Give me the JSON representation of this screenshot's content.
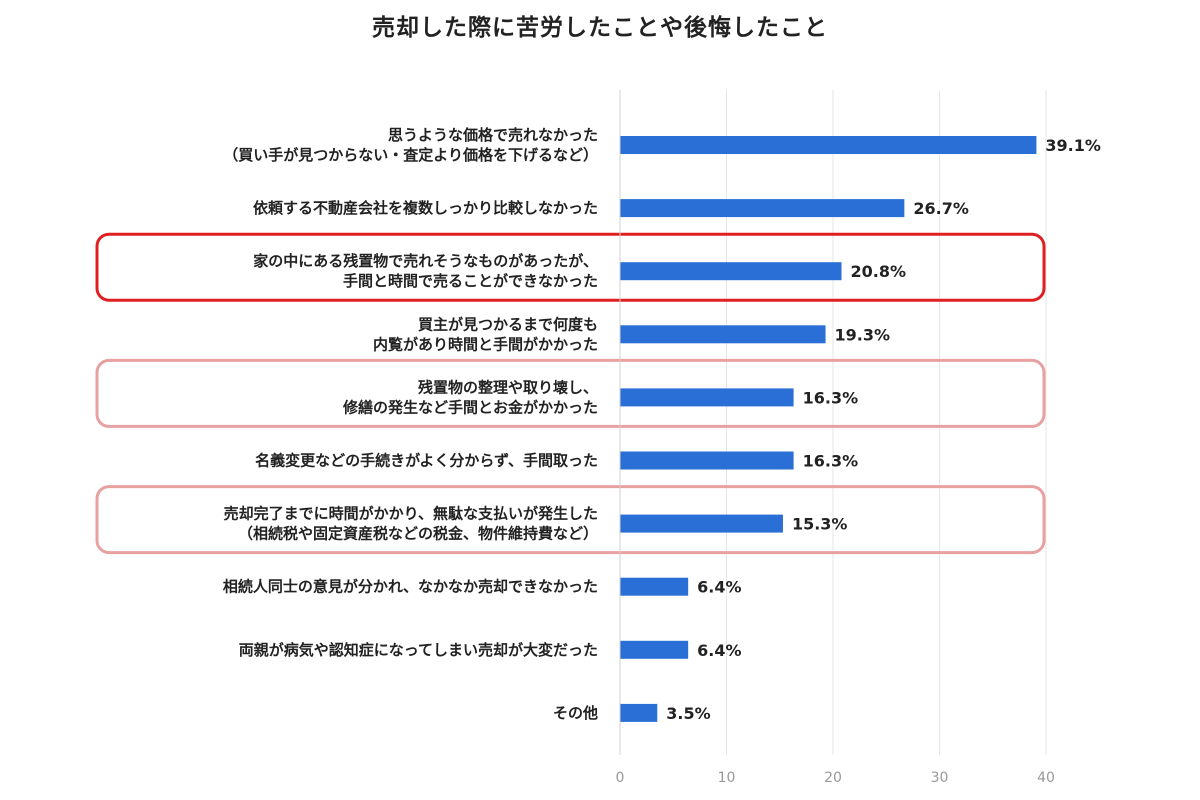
{
  "chart_data": {
    "type": "bar",
    "orientation": "horizontal",
    "title": "売却した際に苦労したことや後悔したこと",
    "xlabel": "",
    "ylabel": "",
    "xlim": [
      0,
      40
    ],
    "xticks": [
      0,
      10,
      20,
      30,
      40
    ],
    "grid": true,
    "bar_color": "#2a6fd6",
    "highlight_colors": {
      "strong": "#e02020",
      "soft": "#e8a0a0"
    },
    "categories": [
      [
        "思うような価格で売れなかった",
        "（買い手が見つからない・査定より価格を下げるなど）"
      ],
      [
        "依頼する不動産会社を複数しっかり比較しなかった"
      ],
      [
        "家の中にある残置物で売れそうなものがあったが、",
        "手間と時間で売ることができなかった"
      ],
      [
        "買主が見つかるまで何度も",
        "内覧があり時間と手間がかかった"
      ],
      [
        "残置物の整理や取り壊し、",
        "修繕の発生など手間とお金がかかった"
      ],
      [
        "名義変更などの手続きがよく分からず、手間取った"
      ],
      [
        "売却完了までに時間がかかり、無駄な支払いが発生した",
        "（相続税や固定資産税などの税金、物件維持費など）"
      ],
      [
        "相続人同士の意見が分かれ、なかなか売却できなかった"
      ],
      [
        "両親が病気や認知症になってしまい売却が大変だった"
      ],
      [
        "その他"
      ]
    ],
    "values": [
      39.1,
      26.7,
      20.8,
      19.3,
      16.3,
      16.3,
      15.3,
      6.4,
      6.4,
      3.5
    ],
    "value_labels": [
      "39.1%",
      "26.7%",
      "20.8%",
      "19.3%",
      "16.3%",
      "16.3%",
      "15.3%",
      "6.4%",
      "6.4%",
      "3.5%"
    ],
    "highlights": [
      {
        "index": 2,
        "style": "strong"
      },
      {
        "index": 4,
        "style": "soft"
      },
      {
        "index": 6,
        "style": "soft"
      }
    ]
  }
}
